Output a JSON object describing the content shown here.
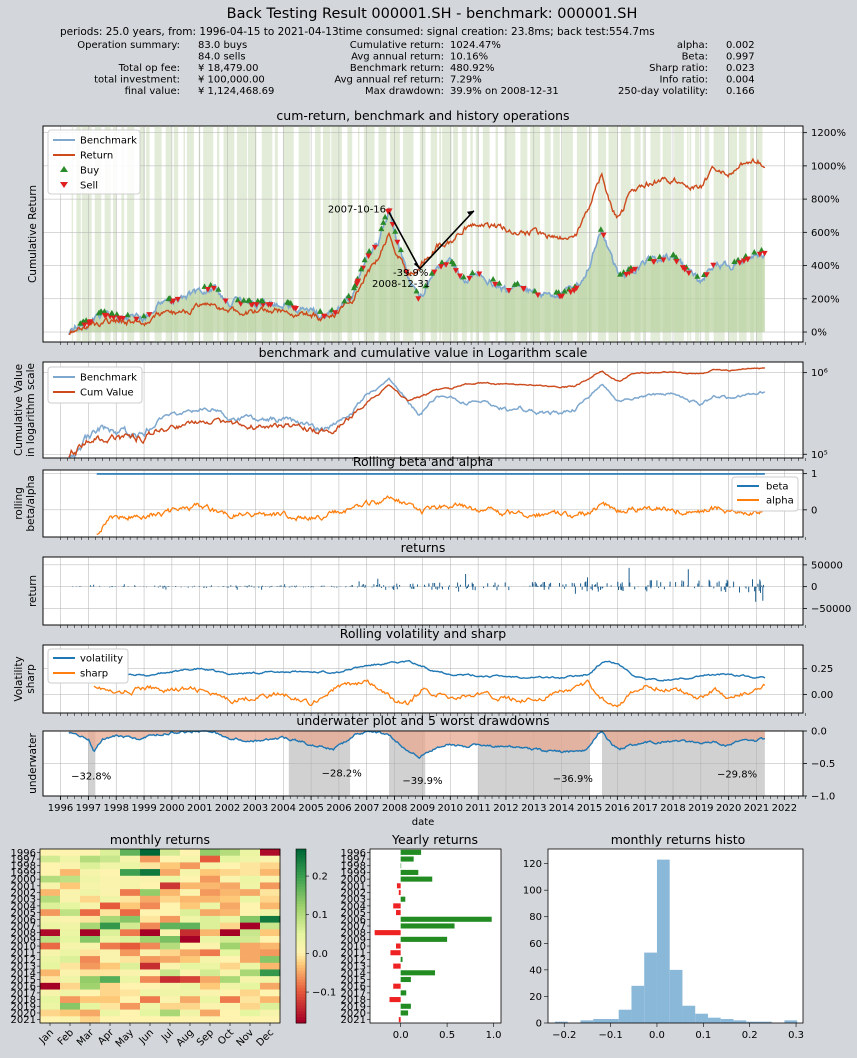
{
  "header": {
    "title": "Back Testing Result 000001.SH - benchmark: 000001.SH",
    "subtitle": "periods: 25.0 years, from: 1996-04-15 to 2021-04-13time consumed:   signal creation: 23.8ms;  back test:554.7ms"
  },
  "summary": {
    "col1": [
      {
        "label": "Operation summary:",
        "value": "83.0     buys"
      },
      {
        "label": "",
        "value": "84.0     sells"
      },
      {
        "label": "Total op fee:",
        "value": "¥    18,479.00"
      },
      {
        "label": "total investment:",
        "value": "¥   100,000.00"
      },
      {
        "label": "final value:",
        "value": "¥ 1,124,468.69"
      }
    ],
    "col2": [
      {
        "label": "Cumulative return:",
        "value": "1024.47%"
      },
      {
        "label": "Avg annual return:",
        "value": "10.16%"
      },
      {
        "label": "Benchmark return:",
        "value": "480.92%"
      },
      {
        "label": "Avg annual ref return:",
        "value": "7.29%"
      },
      {
        "label": "Max drawdown:",
        "value": "39.9% on 2008-12-31"
      }
    ],
    "col3": [
      {
        "label": "alpha:",
        "value": "0.002"
      },
      {
        "label": "Beta:",
        "value": "0.997"
      },
      {
        "label": "Sharp ratio:",
        "value": "0.023"
      },
      {
        "label": "Info ratio:",
        "value": "0.004"
      },
      {
        "label": "250-day volatility:",
        "value": "0.166"
      }
    ]
  },
  "colors": {
    "benchmark": "#7fa8cf",
    "return": "#cc4a1c",
    "buy": "#2a8a2a",
    "sell": "#e02020",
    "hold": "#b9d3a1",
    "beta": "#1f77b4",
    "alpha": "#ff7f0e",
    "underwater": "#1f77b4",
    "drawdown_fill": "#e8a890",
    "worst_period": "#bdbdbd",
    "yearly_pos": "#228b22",
    "yearly_neg": "#ee2222",
    "histo": "#8ab8d9"
  },
  "chart_data": [
    {
      "type": "line",
      "title": "cum-return, benchmark and history operations",
      "ylabel": "Cumulative Return",
      "yticks": [
        "0%",
        "200%",
        "400%",
        "600%",
        "800%",
        "1000%",
        "1200%"
      ],
      "ylim": [
        -0.6,
        12.4
      ],
      "legend": [
        "Benchmark",
        "Return",
        "Buy",
        "Sell"
      ],
      "legend_position": "upper-left",
      "series": [
        {
          "name": "Benchmark",
          "x": [
            1996.3,
            1997.0,
            1997.5,
            1998.0,
            1999.0,
            1999.5,
            2000.0,
            2001.0,
            2001.5,
            2002.0,
            2003.0,
            2004.0,
            2005.0,
            2005.5,
            2006.0,
            2006.5,
            2007.0,
            2007.4,
            2007.8,
            2008.0,
            2008.5,
            2008.9,
            2009.5,
            2010.0,
            2010.5,
            2011.0,
            2012.0,
            2012.5,
            2013.0,
            2014.0,
            2014.5,
            2015.0,
            2015.45,
            2015.8,
            2016.1,
            2017.0,
            2018.0,
            2018.5,
            2019.0,
            2019.5,
            2020.0,
            2020.5,
            2021.0,
            2021.3
          ],
          "y": [
            0.0,
            0.6,
            1.1,
            0.9,
            0.8,
            1.6,
            1.9,
            2.5,
            2.7,
            1.8,
            1.7,
            1.7,
            1.2,
            1.0,
            1.3,
            2.3,
            4.5,
            5.4,
            7.5,
            6.0,
            3.3,
            1.9,
            3.9,
            4.2,
            3.1,
            3.6,
            2.5,
            2.8,
            2.3,
            2.2,
            2.6,
            4.0,
            6.2,
            4.3,
            3.3,
            4.2,
            4.5,
            3.7,
            3.0,
            4.2,
            3.9,
            4.3,
            4.7,
            4.8
          ]
        },
        {
          "name": "Return",
          "x": [
            1996.3,
            1997.0,
            1997.5,
            1998.0,
            1999.0,
            1999.5,
            2000.0,
            2001.0,
            2001.5,
            2002.0,
            2003.0,
            2004.0,
            2004.5,
            2005.0,
            2005.5,
            2006.0,
            2006.5,
            2007.0,
            2007.4,
            2007.8,
            2008.0,
            2008.5,
            2008.9,
            2009.5,
            2010.0,
            2010.5,
            2011.0,
            2012.0,
            2013.0,
            2014.0,
            2014.5,
            2015.0,
            2015.45,
            2015.8,
            2016.1,
            2016.5,
            2017.0,
            2018.0,
            2018.5,
            2019.0,
            2019.5,
            2020.0,
            2020.5,
            2021.0,
            2021.3
          ],
          "y": [
            0.0,
            0.4,
            0.6,
            0.6,
            0.6,
            1.0,
            1.1,
            1.5,
            1.6,
            1.3,
            1.2,
            1.3,
            1.1,
            1.0,
            0.9,
            1.2,
            2.0,
            3.4,
            4.4,
            6.0,
            5.0,
            3.5,
            3.9,
            5.2,
            5.3,
            6.2,
            6.5,
            6.2,
            6.0,
            5.6,
            5.8,
            7.6,
            9.6,
            7.4,
            6.8,
            8.6,
            8.9,
            9.2,
            8.8,
            8.7,
            9.9,
            9.6,
            10.1,
            10.3,
            10.2
          ]
        }
      ],
      "annotations": [
        {
          "text": "2007-10-16",
          "x": 2007.8,
          "y": 7.3
        },
        {
          "text": "-39.9%",
          "x": 2008.3,
          "y": 3.7
        },
        {
          "text": "2008-12-31",
          "x": 2008.9,
          "y": 2.9
        }
      ]
    },
    {
      "type": "line",
      "title": "benchmark and cumulative value in Logarithm scale",
      "ylabel": "Cumulative Value in logarithm scale",
      "yscale": "log",
      "yticks": [
        "10⁵",
        "10⁶"
      ],
      "legend": [
        "Benchmark",
        "Cum Value"
      ],
      "legend_position": "upper-left"
    },
    {
      "type": "line",
      "title": "Rolling beta and alpha",
      "ylabel": "rolling beta/alpha",
      "yticks": [
        "0",
        "1"
      ],
      "legend": [
        "beta",
        "alpha"
      ],
      "legend_position": "right"
    },
    {
      "type": "bar",
      "title": "returns",
      "ylabel": "return",
      "yticks": [
        "−50000",
        "0",
        "50000"
      ]
    },
    {
      "type": "line",
      "title": "Rolling volatility and sharp",
      "ylabel": "Volatility sharp",
      "yticks": [
        "0.00",
        "0.25"
      ],
      "legend": [
        "volatility",
        "sharp"
      ],
      "legend_position": "upper-left"
    },
    {
      "type": "area",
      "title": "underwater plot and 5 worst drawdowns",
      "ylabel": "underwater",
      "xlabel": "date",
      "yticks": [
        "−1.0",
        "−0.5",
        "0.0"
      ],
      "xticks": [
        "1996",
        "1997",
        "1998",
        "1999",
        "2000",
        "2001",
        "2002",
        "2003",
        "2004",
        "2005",
        "2006",
        "2007",
        "2008",
        "2009",
        "2010",
        "2011",
        "2012",
        "2013",
        "2014",
        "2015",
        "2016",
        "2017",
        "2018",
        "2019",
        "2020",
        "2021",
        "2022"
      ],
      "worst_drawdowns": [
        {
          "label": "−32.8%",
          "start": 1997.0,
          "end": 1997.25,
          "label_x": 1997.1,
          "value": -0.328
        },
        {
          "label": "−28.2%",
          "start": 2004.2,
          "end": 2006.4,
          "label_x": 2006.1,
          "value": -0.282
        },
        {
          "label": "−39.9%",
          "start": 2007.8,
          "end": 2009.1,
          "label_x": 2009.0,
          "value": -0.399
        },
        {
          "label": "−36.9%",
          "start": 2011.0,
          "end": 2015.0,
          "label_x": 2014.4,
          "value": -0.369
        },
        {
          "label": "−29.8%",
          "start": 2015.45,
          "end": 2021.3,
          "label_x": 2020.3,
          "value": -0.298
        }
      ]
    },
    {
      "type": "heatmap",
      "title": "monthly returns",
      "xticks": [
        "Jan",
        "Feb",
        "Mar",
        "Apr",
        "May",
        "Jun",
        "Jul",
        "Aug",
        "Sep",
        "Oct",
        "Nov",
        "Dec"
      ],
      "yticks": [
        "1996",
        "1997",
        "1998",
        "1999",
        "2000",
        "2001",
        "2002",
        "2003",
        "2004",
        "2005",
        "2006",
        "2007",
        "2008",
        "2009",
        "2010",
        "2011",
        "2012",
        "2013",
        "2014",
        "2015",
        "2016",
        "2017",
        "2018",
        "2019",
        "2020",
        "2021"
      ],
      "colorbar_ticks": [
        "−0.1",
        "0.0",
        "0.1",
        "0.2"
      ],
      "colorbar_range": [
        -0.18,
        0.27
      ],
      "values": [
        [
          0.0,
          0.0,
          0.0,
          0.06,
          0.17,
          0.27,
          0.07,
          0.0,
          0.13,
          0.1,
          0.04,
          -0.17
        ],
        [
          0.07,
          0.03,
          0.1,
          0.08,
          0.02,
          -0.06,
          0.0,
          0.02,
          -0.1,
          0.05,
          0.03,
          0.01
        ],
        [
          0.0,
          0.01,
          0.06,
          0.03,
          0.04,
          -0.01,
          -0.03,
          -0.06,
          0.02,
          0.0,
          -0.01,
          -0.02
        ],
        [
          0.0,
          -0.04,
          0.02,
          0.0,
          0.2,
          0.25,
          -0.05,
          0.02,
          -0.03,
          -0.02,
          -0.01,
          -0.04
        ],
        [
          0.1,
          0.09,
          0.03,
          0.01,
          0.02,
          0.01,
          0.04,
          0.0,
          -0.06,
          0.01,
          0.04,
          0.01
        ],
        [
          0.02,
          -0.03,
          0.02,
          0.01,
          0.02,
          0.0,
          -0.13,
          -0.04,
          -0.04,
          -0.05,
          0.03,
          -0.06
        ],
        [
          -0.04,
          0.01,
          0.03,
          0.01,
          -0.08,
          0.13,
          -0.04,
          0.01,
          -0.06,
          -0.04,
          -0.05,
          -0.01
        ],
        [
          0.1,
          0.01,
          -0.02,
          0.03,
          -0.01,
          -0.05,
          -0.02,
          -0.04,
          -0.04,
          -0.03,
          0.04,
          -0.02
        ],
        [
          0.06,
          0.05,
          0.02,
          -0.1,
          -0.03,
          -0.07,
          0.0,
          -0.03,
          0.04,
          -0.05,
          0.0,
          -0.04
        ],
        [
          -0.06,
          0.09,
          -0.09,
          -0.01,
          -0.09,
          0.0,
          0.0,
          0.06,
          -0.05,
          -0.04,
          0.0,
          0.03
        ],
        [
          0.02,
          0.01,
          -0.01,
          0.11,
          0.14,
          -0.01,
          -0.06,
          0.03,
          0.06,
          0.04,
          0.14,
          0.25
        ],
        [
          0.04,
          0.03,
          0.11,
          0.21,
          0.07,
          -0.07,
          0.17,
          0.17,
          0.06,
          -0.02,
          -0.18,
          0.08
        ],
        [
          -0.17,
          0.04,
          -0.2,
          0.06,
          -0.08,
          -0.2,
          0.01,
          -0.14,
          -0.04,
          -0.25,
          0.08,
          -0.03
        ],
        [
          0.09,
          0.05,
          0.14,
          0.04,
          0.06,
          0.12,
          0.15,
          -0.22,
          0.04,
          0.07,
          0.07,
          0.0
        ],
        [
          -0.09,
          0.02,
          0.02,
          -0.08,
          -0.1,
          -0.07,
          0.1,
          0.0,
          0.01,
          0.12,
          -0.05,
          -0.04
        ],
        [
          0.02,
          0.04,
          -0.01,
          0.01,
          -0.06,
          0.01,
          -0.02,
          -0.05,
          -0.08,
          0.05,
          -0.05,
          -0.06
        ],
        [
          0.04,
          0.06,
          -0.07,
          0.01,
          -0.01,
          -0.06,
          -0.05,
          -0.03,
          0.02,
          0.0,
          -0.05,
          0.14
        ],
        [
          0.05,
          -0.01,
          -0.06,
          -0.03,
          0.06,
          -0.14,
          0.01,
          0.05,
          0.04,
          -0.02,
          0.04,
          -0.04
        ],
        [
          -0.04,
          0.01,
          -0.01,
          -0.01,
          0.01,
          0.0,
          0.08,
          0.01,
          0.07,
          0.02,
          0.11,
          0.21
        ],
        [
          -0.01,
          0.03,
          0.13,
          0.18,
          0.04,
          -0.07,
          -0.14,
          -0.12,
          -0.05,
          0.11,
          0.02,
          0.03
        ],
        [
          -0.23,
          -0.02,
          0.12,
          -0.02,
          0.0,
          0.0,
          0.02,
          0.04,
          -0.03,
          0.03,
          0.05,
          -0.05
        ],
        [
          0.02,
          0.03,
          0.0,
          -0.02,
          -0.01,
          0.03,
          0.03,
          0.03,
          0.01,
          0.0,
          -0.02,
          0.0
        ],
        [
          0.05,
          -0.06,
          -0.03,
          -0.03,
          0.0,
          -0.08,
          0.01,
          -0.05,
          0.04,
          -0.08,
          -0.01,
          -0.04
        ],
        [
          0.04,
          0.14,
          0.05,
          -0.01,
          -0.06,
          0.03,
          -0.02,
          -0.02,
          0.01,
          0.01,
          -0.02,
          0.06
        ],
        [
          -0.02,
          -0.03,
          -0.05,
          0.04,
          0.0,
          0.05,
          0.11,
          0.03,
          -0.05,
          0.0,
          0.05,
          0.02
        ],
        [
          0.0,
          0.01,
          -0.02,
          0.0,
          0.0,
          0.0,
          0.0,
          0.0,
          0.0,
          0.0,
          0.0,
          0.0
        ]
      ]
    },
    {
      "type": "bar",
      "title": "Yearly returns",
      "orientation": "horizontal",
      "categories": [
        "1996",
        "1997",
        "1998",
        "1999",
        "2000",
        "2001",
        "2002",
        "2003",
        "2004",
        "2005",
        "2006",
        "2007",
        "2008",
        "2009",
        "2010",
        "2011",
        "2012",
        "2013",
        "2014",
        "2015",
        "2016",
        "2017",
        "2018",
        "2019",
        "2020",
        "2021"
      ],
      "values": [
        0.22,
        0.14,
        0.0,
        0.19,
        0.34,
        -0.04,
        -0.02,
        0.05,
        -0.08,
        -0.05,
        0.98,
        0.58,
        -0.28,
        0.5,
        -0.05,
        -0.11,
        0.02,
        -0.08,
        0.37,
        0.11,
        -0.08,
        0.06,
        -0.12,
        0.11,
        0.08,
        -0.02
      ],
      "xticks": [
        "0.0",
        "0.5",
        "1.0"
      ],
      "xlim": [
        -0.33,
        1.08
      ]
    },
    {
      "type": "bar",
      "title": "monthly returns histo",
      "xticks": [
        "−0.2",
        "−0.1",
        "0.0",
        "0.1",
        "0.2",
        "0.3"
      ],
      "yticks": [
        "0",
        "20",
        "40",
        "60",
        "80",
        "100",
        "120"
      ],
      "xlim": [
        -0.235,
        0.315
      ],
      "ylim": [
        0,
        131
      ],
      "bins": [
        -0.22,
        -0.1925,
        -0.165,
        -0.1375,
        -0.11,
        -0.0825,
        -0.055,
        -0.0275,
        0.0,
        0.0275,
        0.055,
        0.0825,
        0.11,
        0.1375,
        0.165,
        0.1925,
        0.22,
        0.2475,
        0.275,
        0.3025
      ],
      "counts": [
        1,
        0,
        2,
        3,
        3,
        10,
        28,
        53,
        123,
        40,
        13,
        7,
        4,
        3,
        2,
        1,
        1,
        0,
        2
      ]
    }
  ]
}
